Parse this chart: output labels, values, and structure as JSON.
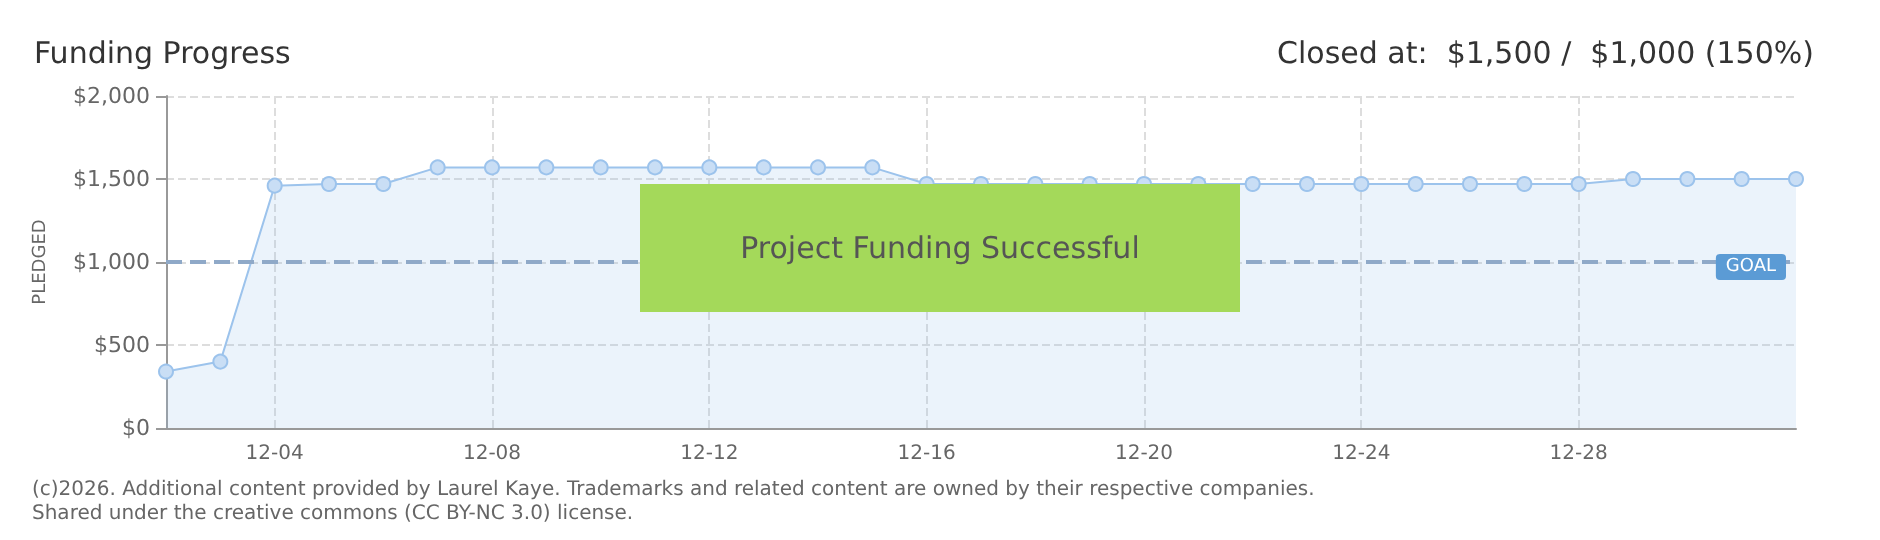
{
  "chart_data": {
    "type": "area",
    "title": "Funding Progress",
    "subtitle": "Closed at:  $1,500 /  $1,000 (150%)",
    "ylabel": "PLEDGED",
    "categories": [
      null,
      null,
      "12-04",
      null,
      null,
      null,
      "12-08",
      null,
      null,
      null,
      "12-12",
      null,
      null,
      null,
      "12-16",
      null,
      null,
      null,
      "12-20",
      null,
      null,
      null,
      "12-24",
      null,
      null,
      null,
      "12-28",
      null,
      null,
      null,
      null
    ],
    "series": [
      {
        "color": "#9cc3ec",
        "values": [
          340,
          400,
          1460,
          1470,
          1470,
          1570,
          1570,
          1570,
          1570,
          1570,
          1570,
          1570,
          1570,
          1570,
          1470,
          1470,
          1470,
          1470,
          1470,
          1470,
          1470,
          1470,
          1470,
          1470,
          1470,
          1470,
          1470,
          1500,
          1500,
          1500,
          1500
        ]
      }
    ],
    "ylim": [
      0,
      2000
    ],
    "yticks": [
      {
        "value": 0,
        "label": "$0"
      },
      {
        "value": 500,
        "label": "$500"
      },
      {
        "value": 1000,
        "label": "$1,000"
      },
      {
        "value": 1500,
        "label": "$1,500"
      },
      {
        "value": 2000,
        "label": "$2,000"
      }
    ],
    "grid": true,
    "marker": "circle",
    "ref_lines": [
      {
        "axis": "y",
        "value": 1000,
        "label": "GOAL",
        "color": "#8fa9c8",
        "line_style": "dashed"
      }
    ],
    "annotations": [
      "Project Funding Successful",
      "(c)2026. Additional content provided by Laurel Kaye. Trademarks and related content are owned by their respective companies.",
      "Shared under the creative commons (CC BY-NC 3.0) license."
    ]
  }
}
